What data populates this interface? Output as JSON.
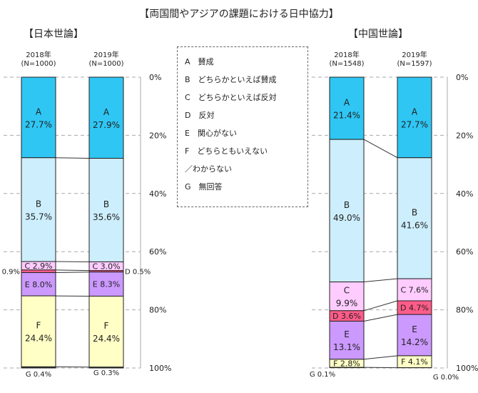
{
  "title": "【両国間やアジアの課題における日中協力】",
  "legend": [
    "A　賛成",
    "B　どちらかといえば賛成",
    "C　どちらかといえば反対",
    "D　反対",
    "E　関心がない",
    "F　どちらともいえない",
    "／わからない",
    "G　無回答"
  ],
  "colors": {
    "A": "#2fc6f4",
    "B": "#cdeefc",
    "C": "#ffccff",
    "D": "#ff5c8a",
    "E": "#cc99ff",
    "F": "#ffffc6",
    "G": "#333333"
  },
  "chart_data": [
    {
      "type": "bar",
      "stacked": true,
      "title": "【日本世論】",
      "categories": [
        "2018年\n(N=1000)",
        "2019年\n(N=1000)"
      ],
      "segments": [
        "A",
        "B",
        "C",
        "D",
        "E",
        "F",
        "G"
      ],
      "series": [
        {
          "name": "A",
          "values": [
            27.7,
            27.9
          ]
        },
        {
          "name": "B",
          "values": [
            35.7,
            35.6
          ]
        },
        {
          "name": "C",
          "values": [
            2.9,
            3.0
          ]
        },
        {
          "name": "D",
          "values": [
            0.9,
            0.5
          ]
        },
        {
          "name": "E",
          "values": [
            8.0,
            8.3
          ]
        },
        {
          "name": "F",
          "values": [
            24.4,
            24.4
          ]
        },
        {
          "name": "G",
          "values": [
            0.4,
            0.3
          ]
        }
      ],
      "yticks": [
        "0%",
        "20%",
        "40%",
        "60%",
        "80%",
        "100%"
      ],
      "ylim": [
        0,
        100
      ],
      "grid": true
    },
    {
      "type": "bar",
      "stacked": true,
      "title": "【中国世論】",
      "categories": [
        "2018年\n(N=1548)",
        "2019年\n(N=1597)"
      ],
      "segments": [
        "A",
        "B",
        "C",
        "D",
        "E",
        "F",
        "G"
      ],
      "series": [
        {
          "name": "A",
          "values": [
            21.4,
            27.7
          ]
        },
        {
          "name": "B",
          "values": [
            49.0,
            41.6
          ]
        },
        {
          "name": "C",
          "values": [
            9.9,
            7.6
          ]
        },
        {
          "name": "D",
          "values": [
            3.6,
            4.7
          ]
        },
        {
          "name": "E",
          "values": [
            13.1,
            14.2
          ]
        },
        {
          "name": "F",
          "values": [
            2.8,
            4.1
          ]
        },
        {
          "name": "G",
          "values": [
            0.1,
            0.0
          ]
        }
      ],
      "yticks": [
        "0%",
        "20%",
        "40%",
        "60%",
        "80%",
        "100%"
      ],
      "ylim": [
        0,
        100
      ],
      "grid": true
    }
  ]
}
